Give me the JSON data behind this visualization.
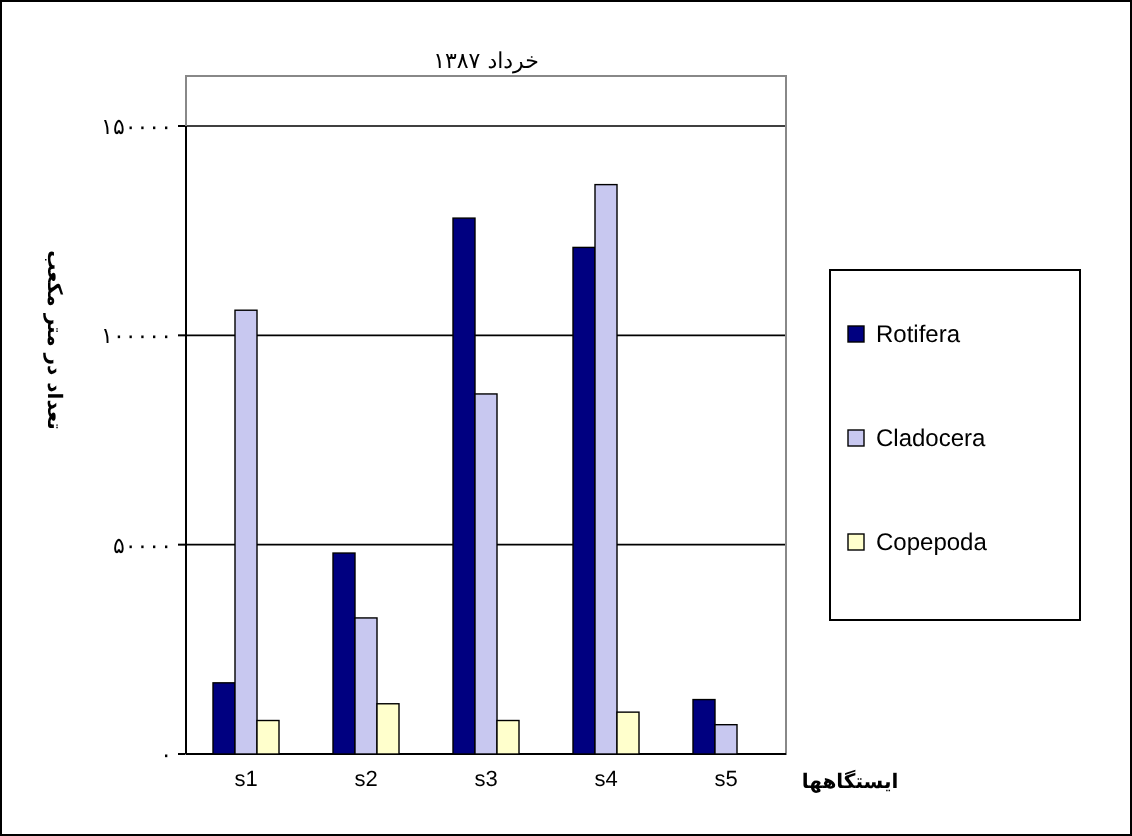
{
  "chart_data": {
    "type": "bar",
    "title": "خرداد ۱۳۸۷",
    "ylabel": "تعداد در متر مکعب",
    "xlabel": "ایستگاهها",
    "categories": [
      "s1",
      "s2",
      "s3",
      "s4",
      "s5"
    ],
    "series": [
      {
        "name": "Rotifera",
        "color": "#000080",
        "values": [
          17000,
          48000,
          128000,
          121000,
          13000
        ]
      },
      {
        "name": "Cladocera",
        "color": "#c8c8f0",
        "values": [
          106000,
          32500,
          86000,
          136000,
          7000
        ]
      },
      {
        "name": "Copepoda",
        "color": "#ffffcc",
        "values": [
          8000,
          12000,
          8000,
          10000,
          null
        ]
      }
    ],
    "ylim": [
      0,
      150000
    ],
    "yticks": [
      {
        "value": 0,
        "label": "۰"
      },
      {
        "value": 50000,
        "label": "۵۰۰۰۰"
      },
      {
        "value": 100000,
        "label": "۱۰۰۰۰۰"
      },
      {
        "value": 150000,
        "label": "۱۵۰۰۰۰"
      }
    ],
    "grid": "y",
    "legend": "right"
  }
}
